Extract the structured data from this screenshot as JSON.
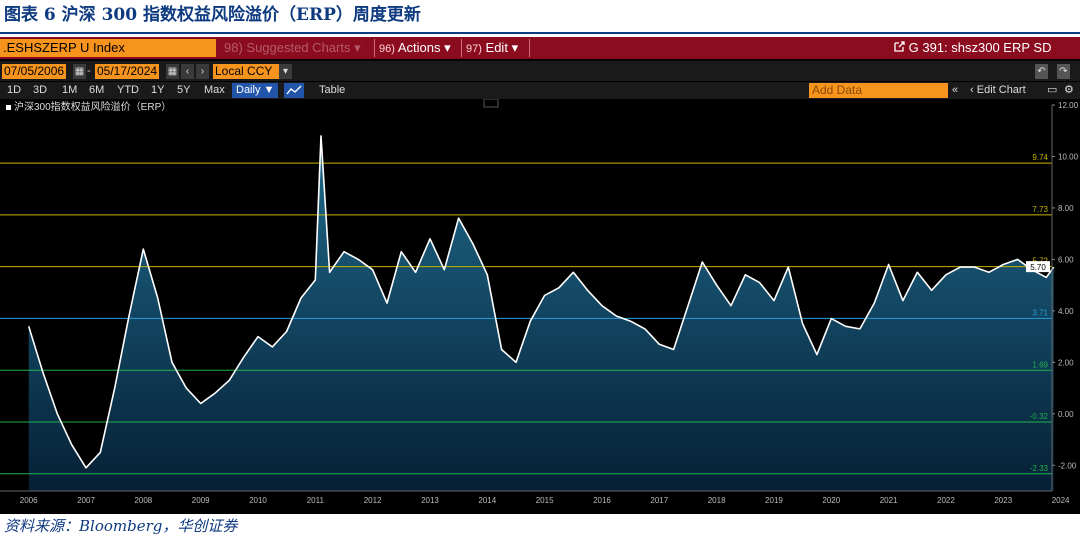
{
  "caption": "图表 6  沪深 300 指数权益风险溢价（ERP）周度更新",
  "source": "资料来源：Bloomberg，华创证券",
  "toolbar": {
    "ticker": ".ESHSZERP U Index",
    "suggested_charts": "98) Suggested Charts",
    "actions_num": "96)",
    "actions": "Actions",
    "edit_num": "97)",
    "edit": "Edit",
    "chart_id": "G 391: shsz300 ERP SD"
  },
  "dates": {
    "start": "07/05/2006",
    "end": "05/17/2024",
    "currency": "Local CCY"
  },
  "ranges": [
    "1D",
    "3D",
    "1M",
    "6M",
    "YTD",
    "1Y",
    "5Y",
    "Max"
  ],
  "frequency": "Daily ▼",
  "table_label": "Table",
  "add_data": "Add Data",
  "edit_chart": "Edit Chart",
  "colors": {
    "accent": "#f7941d",
    "brand_bar": "#8c0c1f",
    "line": "#ffffff",
    "fill_top": "#1f6a8c",
    "fill_bottom": "#062035",
    "mean_line": "#2b9bd8",
    "one_sd": "#22b14c",
    "two_sd": "#c8b400"
  },
  "chart_data": {
    "type": "area",
    "legend": "沪深300指数权益风险溢价（ERP）",
    "x": [
      2006.5,
      2006.75,
      2007.0,
      2007.25,
      2007.5,
      2007.75,
      2008.0,
      2008.25,
      2008.5,
      2008.75,
      2009.0,
      2009.25,
      2009.5,
      2009.75,
      2010.0,
      2010.25,
      2010.5,
      2010.75,
      2011.0,
      2011.25,
      2011.5,
      2011.6,
      2011.75,
      2012.0,
      2012.25,
      2012.5,
      2012.75,
      2013.0,
      2013.25,
      2013.5,
      2013.75,
      2014.0,
      2014.25,
      2014.5,
      2014.75,
      2015.0,
      2015.25,
      2015.5,
      2015.75,
      2016.0,
      2016.25,
      2016.5,
      2016.75,
      2017.0,
      2017.25,
      2017.5,
      2017.75,
      2018.0,
      2018.25,
      2018.5,
      2018.75,
      2019.0,
      2019.25,
      2019.5,
      2019.75,
      2020.0,
      2020.25,
      2020.5,
      2020.75,
      2021.0,
      2021.25,
      2021.5,
      2021.75,
      2022.0,
      2022.25,
      2022.5,
      2022.75,
      2023.0,
      2023.25,
      2023.5,
      2023.75,
      2024.0,
      2024.25,
      2024.38
    ],
    "y": [
      3.4,
      1.6,
      0.0,
      -1.2,
      -2.1,
      -1.5,
      1.0,
      3.8,
      6.4,
      4.5,
      2.0,
      1.0,
      0.4,
      0.8,
      1.3,
      2.2,
      3.0,
      2.6,
      3.2,
      4.5,
      5.2,
      10.8,
      5.5,
      6.3,
      6.0,
      5.6,
      4.3,
      6.3,
      5.5,
      6.8,
      5.6,
      7.6,
      6.6,
      5.4,
      2.5,
      2.0,
      3.6,
      4.6,
      4.9,
      5.5,
      4.8,
      4.2,
      3.8,
      3.6,
      3.3,
      2.7,
      2.5,
      4.2,
      5.9,
      5.0,
      4.2,
      5.4,
      5.1,
      4.4,
      5.7,
      3.5,
      2.3,
      3.7,
      3.4,
      3.3,
      4.3,
      5.8,
      4.4,
      5.5,
      4.8,
      5.4,
      5.7,
      5.7,
      5.5,
      5.8,
      6.0,
      5.6,
      5.3,
      5.7
    ],
    "ylim": [
      -3,
      12
    ],
    "xlim": [
      2006.0,
      2024.35
    ],
    "xticks": [
      "2006",
      "2007",
      "2008",
      "2009",
      "2010",
      "2011",
      "2012",
      "2013",
      "2014",
      "2015",
      "2016",
      "2017",
      "2018",
      "2019",
      "2020",
      "2021",
      "2022",
      "2023",
      "2024"
    ],
    "yticks": [
      "12.00",
      "10.00",
      "8.00",
      "6.00",
      "4.00",
      "2.00",
      "0.00",
      "-2.00"
    ],
    "reference_lines": [
      {
        "label": "9.74",
        "value": 9.74,
        "color": "#c8b400"
      },
      {
        "label": "7.73",
        "value": 7.73,
        "color": "#c8b400"
      },
      {
        "label": "5.72",
        "value": 5.72,
        "color": "#c8b400"
      },
      {
        "label": "3.71",
        "value": 3.71,
        "color": "#2b9bd8"
      },
      {
        "label": "1.69",
        "value": 1.69,
        "color": "#22b14c"
      },
      {
        "label": "-0.32",
        "value": -0.32,
        "color": "#22b14c"
      },
      {
        "label": "-2.33",
        "value": -2.33,
        "color": "#22b14c"
      }
    ],
    "last_value": "5.70",
    "grid": false,
    "legend_position": "top-left"
  }
}
